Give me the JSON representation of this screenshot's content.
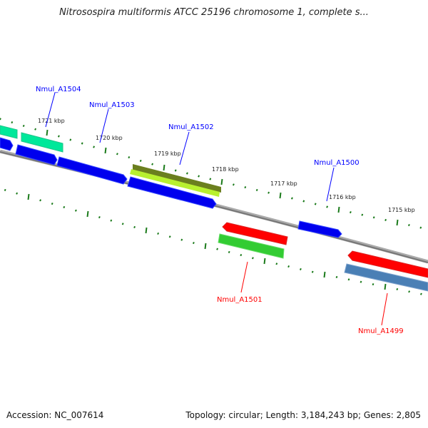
{
  "title": "Nitrosospira multiformis ATCC 25196 chromosome 1, complete s...",
  "footer": {
    "accession": "Accession: NC_007614",
    "summary": "Topology: circular; Length: 3,184,243 bp; Genes: 2,805"
  },
  "ruler": [
    "1721 kbp",
    "1720 kbp",
    "1719 kbp",
    "1718 kbp",
    "1717 kbp",
    "1716 kbp",
    "1715 kbp"
  ],
  "genes": [
    {
      "label": "Nmul_A1504",
      "color": "#0000ff"
    },
    {
      "label": "Nmul_A1503",
      "color": "#0000ff"
    },
    {
      "label": "Nmul_A1502",
      "color": "#0000ff"
    },
    {
      "label": "Nmul_A1500",
      "color": "#0000ff"
    },
    {
      "label": "Nmul_A1501",
      "color": "#ff0000"
    },
    {
      "label": "Nmul_A1499",
      "color": "#ff0000"
    }
  ],
  "colors": {
    "backbone": "#888888",
    "ticks": "#1a7a1a",
    "forward": "#0000ee",
    "reverse": "#ff0000",
    "teal": "#00e89a",
    "olive": "#6b7f1f",
    "lime": "#b8f030",
    "green": "#33cc33",
    "steel": "#4a7fb5"
  }
}
